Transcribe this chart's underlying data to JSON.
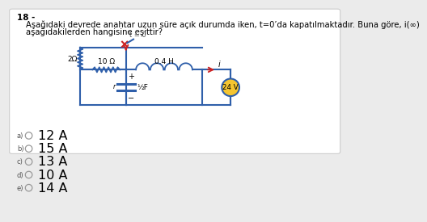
{
  "question_number": "18 -",
  "question_text": "Aşağıdaki devrede anahtar uzun süre açık durumda iken, t=0’da kapatılmaktadır. Buna göre, i(∞)",
  "question_text2": "aşağıdakilerden hangisine eşittir?",
  "options": [
    {
      "label": "a)",
      "value": "12 A"
    },
    {
      "label": "b)",
      "value": "15 A"
    },
    {
      "label": "c)",
      "value": "13 A"
    },
    {
      "label": "d)",
      "value": "10 A"
    },
    {
      "label": "e)",
      "value": "14 A"
    }
  ],
  "bg_color": "#ebebeb",
  "box_color": "#ffffff",
  "circuit_color": "#2f5faa",
  "text_color": "#000000",
  "red_color": "#cc2222",
  "resistor_label_10": "10 Ω",
  "resistor_label_2": "2Ω",
  "inductor_label": "0.4 H",
  "voltage_label": "24 V",
  "capacitor_label": "½F",
  "capacitor_r_label": "r",
  "switch_label": "t = 0",
  "current_label": "i"
}
